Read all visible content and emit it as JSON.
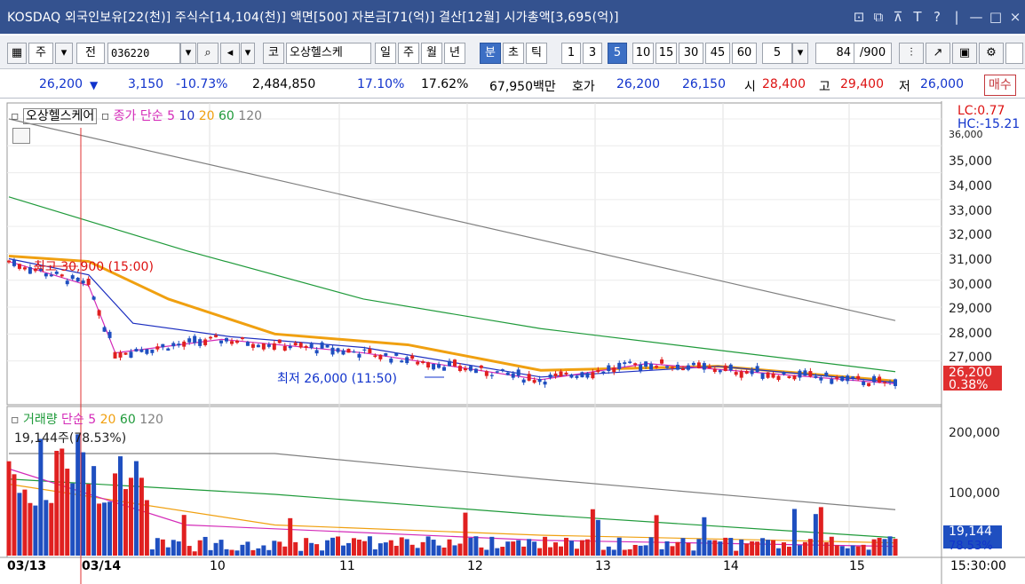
{
  "window": {
    "title": "KOSDAQ 외국인보유[22(천)] 주식수[14,104(천)] 액면[500] 자본금[71(억)] 결산[12월] 시가총액[3,695(억)]",
    "controls": [
      "⊡",
      "⧉",
      "⊼",
      "T",
      "?",
      "|",
      "—",
      "□",
      "×"
    ]
  },
  "toolbar": {
    "market_btn": "주",
    "prev_btn": "전",
    "code": "036220",
    "chart_btn": "코",
    "name": "오상헬스케",
    "periods": [
      "일",
      "주",
      "월",
      "년",
      "분",
      "초",
      "틱"
    ],
    "active_period": "분",
    "intervals": [
      "1",
      "3",
      "5",
      "10",
      "15",
      "30",
      "45",
      "60"
    ],
    "active_interval": "5",
    "custom_interval": "5",
    "count": "84",
    "count_total": "/900"
  },
  "quote": {
    "price": "26,200",
    "arrow": "▼",
    "change": "3,150",
    "change_pct": "-10.73%",
    "volume": "2,484,850",
    "turnover": "17.10%",
    "turnover2": "17.62%",
    "amount": "67,950백만",
    "bid_label": "호가",
    "ask": "26,200",
    "bid": "26,150",
    "open_label": "시",
    "open": "28,400",
    "high_label": "고",
    "high": "29,400",
    "low_label": "저",
    "low": "26,000",
    "buy_label": "매수"
  },
  "price_panel": {
    "stock_label": "오상헬스케어",
    "legend_prefix": "종가 단순",
    "ma_periods": [
      "5",
      "10",
      "20",
      "60",
      "120"
    ],
    "ma_colors": [
      "#d42ab8",
      "#1d2fc0",
      "#f0a010",
      "#1f9a3a",
      "#808080"
    ],
    "lc": "LC:0.77",
    "hc": "HC:-15.21",
    "high_annotation": "최고 30,900 (15:00)",
    "low_annotation": "최저 26,000 (11:50)",
    "y_ticks": [
      "35,000",
      "34,000",
      "33,000",
      "32,000",
      "31,000",
      "30,000",
      "29,000",
      "28,000",
      "27,000"
    ],
    "y_tick_top_partial": "36,000",
    "last_price": "26,200",
    "last_pct": "0.38%"
  },
  "volume_panel": {
    "legend_label": "거래량",
    "legend_prefix": "단순",
    "ma_periods": [
      "5",
      "20",
      "60",
      "120"
    ],
    "info": "19,144주(78.53%)",
    "y_ticks": [
      "200,000",
      "100,000"
    ],
    "last_volume": "19,144",
    "last_pct": "78.53%"
  },
  "x_axis": {
    "labels": [
      "03/13",
      "03/14",
      "10",
      "11",
      "12",
      "13",
      "14",
      "15"
    ],
    "time": "15:30:00"
  },
  "chart_data": {
    "type": "candlestick",
    "ylim": [
      25700,
      36000
    ],
    "ma_lines": {
      "ma120": [
        [
          0,
          36000
        ],
        [
          1000,
          28500
        ]
      ],
      "ma60": [
        [
          0,
          33100
        ],
        [
          200,
          31100
        ],
        [
          400,
          29300
        ],
        [
          600,
          28200
        ],
        [
          800,
          27400
        ],
        [
          1000,
          26600
        ]
      ],
      "ma20": [
        [
          0,
          30900
        ],
        [
          90,
          30700
        ],
        [
          180,
          29300
        ],
        [
          300,
          28000
        ],
        [
          450,
          27600
        ],
        [
          600,
          26650
        ],
        [
          800,
          26800
        ],
        [
          1000,
          26250
        ]
      ],
      "ma10": [
        [
          0,
          30800
        ],
        [
          90,
          30200
        ],
        [
          140,
          28400
        ],
        [
          250,
          27900
        ],
        [
          400,
          27500
        ],
        [
          600,
          26400
        ],
        [
          800,
          26800
        ],
        [
          1000,
          26200
        ]
      ],
      "ma5": [
        [
          0,
          30700
        ],
        [
          90,
          29800
        ],
        [
          120,
          27300
        ],
        [
          240,
          27800
        ],
        [
          400,
          27300
        ],
        [
          600,
          26300
        ],
        [
          720,
          26900
        ],
        [
          1000,
          26150
        ]
      ]
    },
    "volume_ma": {
      "ma120": [
        [
          0,
          200000
        ],
        [
          300,
          200000
        ],
        [
          600,
          150000
        ],
        [
          1000,
          90000
        ]
      ],
      "ma60": [
        [
          0,
          150000
        ],
        [
          300,
          120000
        ],
        [
          600,
          80000
        ],
        [
          1000,
          35000
        ]
      ],
      "ma20": [
        [
          0,
          140000
        ],
        [
          300,
          60000
        ],
        [
          600,
          40000
        ],
        [
          1000,
          25000
        ]
      ],
      "ma5": [
        [
          0,
          170000
        ],
        [
          200,
          60000
        ],
        [
          600,
          30000
        ],
        [
          1000,
          18000
        ]
      ]
    }
  }
}
